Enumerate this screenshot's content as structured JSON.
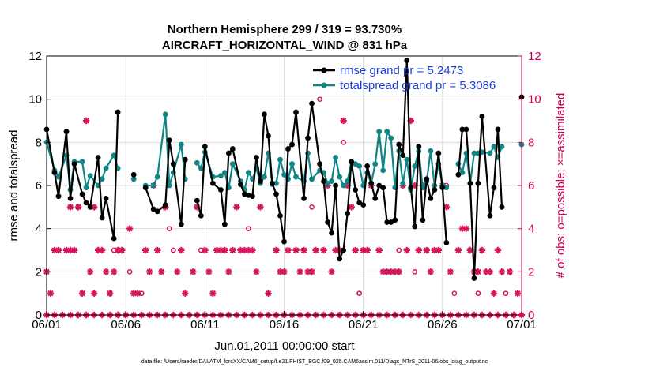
{
  "chart_data": {
    "type": "line",
    "title_line1": "Northern Hemisphere 299 / 319 = 93.730%",
    "title_line2": "AIRCRAFT_HORIZONTAL_WIND @ 831 hPa",
    "xlabel": "Jun.01,2011 00:00:00 start",
    "ylabel": "rmse and totalspread",
    "ylabel_right": "# of obs: o=possible; ×=assimilated",
    "footnote": "data file: /Users/raeder/DAI/ATM_forcXX/CAM6_setup/f.e21.FHIST_BGC.f09_025.CAM6assim.011/Diags_NTrS_2011-06/obs_diag_output.nc",
    "xlim": [
      0,
      30
    ],
    "ylim": [
      0,
      12
    ],
    "ylim_right": [
      0,
      12
    ],
    "x_ticks": [
      0,
      5,
      10,
      15,
      20,
      25,
      30
    ],
    "x_tick_labels": [
      "06/01",
      "06/06",
      "06/11",
      "06/16",
      "06/21",
      "06/26",
      "07/01"
    ],
    "y_ticks": [
      0,
      2,
      4,
      6,
      8,
      10,
      12
    ],
    "y_tick_labels": [
      "0",
      "2",
      "4",
      "6",
      "8",
      "10",
      "12"
    ],
    "y_right_tick_labels": [
      "0",
      "2",
      "4",
      "6",
      "8",
      "10",
      "12"
    ],
    "colors": {
      "rmse": "#000000",
      "totalspread": "#108585",
      "obs": "#d4175c",
      "legend_text": "#1a3fd6",
      "right_axis": "#cc0055"
    },
    "series": [
      {
        "name": "rmse grand pr = 5.2473",
        "values": [
          [
            0,
            8.6
          ],
          [
            0.5,
            6.6
          ],
          [
            0.75,
            5.5
          ],
          [
            1.25,
            8.5
          ],
          [
            1.5,
            5.4
          ],
          [
            1.75,
            7.0
          ],
          [
            2.25,
            5.6
          ],
          [
            2.5,
            5.2
          ],
          [
            2.75,
            5.0
          ],
          [
            3.25,
            7.3
          ],
          [
            3.5,
            4.5
          ],
          [
            3.75,
            5.4
          ],
          [
            4.25,
            3.55
          ],
          [
            4.5,
            9.4
          ],
          [
            5.5,
            6.5
          ],
          [
            6.25,
            5.9
          ],
          [
            6.75,
            4.9
          ],
          [
            7.0,
            4.8
          ],
          [
            7.5,
            5.1
          ],
          [
            7.75,
            8.1
          ],
          [
            8.0,
            7.0
          ],
          [
            8.5,
            4.2
          ],
          [
            8.75,
            7.2
          ],
          [
            9.5,
            5.3
          ],
          [
            9.75,
            4.6
          ],
          [
            10.0,
            7.8
          ],
          [
            10.5,
            6.1
          ],
          [
            11.0,
            5.8
          ],
          [
            11.25,
            4.2
          ],
          [
            11.5,
            7.5
          ],
          [
            11.75,
            7.7
          ],
          [
            12.25,
            6.05
          ],
          [
            12.5,
            5.6
          ],
          [
            12.75,
            5.55
          ],
          [
            13.0,
            5.5
          ],
          [
            13.25,
            7.3
          ],
          [
            13.5,
            6.2
          ],
          [
            13.75,
            9.3
          ],
          [
            14.0,
            8.3
          ],
          [
            14.25,
            6.1
          ],
          [
            14.5,
            5.6
          ],
          [
            14.75,
            4.6
          ],
          [
            15.0,
            3.4
          ],
          [
            15.25,
            7.7
          ],
          [
            15.5,
            7.9
          ],
          [
            15.75,
            9.4
          ],
          [
            16.25,
            5.4
          ],
          [
            16.5,
            8.2
          ],
          [
            16.75,
            9.8
          ],
          [
            17.25,
            7.0
          ],
          [
            17.5,
            6.2
          ],
          [
            17.75,
            4.3
          ],
          [
            18.0,
            3.8
          ],
          [
            18.25,
            6.0
          ],
          [
            18.5,
            2.6
          ],
          [
            18.75,
            3.0
          ],
          [
            19.0,
            4.7
          ],
          [
            19.25,
            7.1
          ],
          [
            19.5,
            5.8
          ],
          [
            19.75,
            5.2
          ],
          [
            20.0,
            5.1
          ],
          [
            20.25,
            6.9
          ],
          [
            20.5,
            6.1
          ],
          [
            20.75,
            5.4
          ],
          [
            21.0,
            6.0
          ],
          [
            21.25,
            5.9
          ],
          [
            21.5,
            4.3
          ],
          [
            21.75,
            4.3
          ],
          [
            22.0,
            4.4
          ],
          [
            22.25,
            7.9
          ],
          [
            22.5,
            7.4
          ],
          [
            22.75,
            11.8
          ],
          [
            23.0,
            5.9
          ],
          [
            23.25,
            4.1
          ],
          [
            23.5,
            7.8
          ],
          [
            23.75,
            4.4
          ],
          [
            24.0,
            6.3
          ],
          [
            24.25,
            5.4
          ],
          [
            24.5,
            5.8
          ],
          [
            24.75,
            7.5
          ],
          [
            25.0,
            5.9
          ],
          [
            25.25,
            3.35
          ],
          [
            26.0,
            6.5
          ],
          [
            26.25,
            8.6
          ],
          [
            26.5,
            8.6
          ],
          [
            26.75,
            6.1
          ],
          [
            27.0,
            1.7
          ],
          [
            27.25,
            6.1
          ],
          [
            27.5,
            9.2
          ],
          [
            28.0,
            4.6
          ],
          [
            28.25,
            5.9
          ],
          [
            28.5,
            8.6
          ],
          [
            28.75,
            5.0
          ],
          [
            30,
            10.1
          ]
        ]
      },
      {
        "name": "totalspread grand pr = 5.3086",
        "values": [
          [
            0,
            8.0
          ],
          [
            0.5,
            6.7
          ],
          [
            0.75,
            6.4
          ],
          [
            1.25,
            7.4
          ],
          [
            1.5,
            5.8
          ],
          [
            1.75,
            7.1
          ],
          [
            2.25,
            7.1
          ],
          [
            2.5,
            5.9
          ],
          [
            2.75,
            6.45
          ],
          [
            3.25,
            6.0
          ],
          [
            3.5,
            6.3
          ],
          [
            3.75,
            6.8
          ],
          [
            4.25,
            7.4
          ],
          [
            4.5,
            6.8
          ],
          [
            5.5,
            6.3
          ],
          [
            6.25,
            6.0
          ],
          [
            6.75,
            6.0
          ],
          [
            7.0,
            6.4
          ],
          [
            7.5,
            9.3
          ],
          [
            7.75,
            6.0
          ],
          [
            8.0,
            6.6
          ],
          [
            8.5,
            7.9
          ],
          [
            8.75,
            6.3
          ],
          [
            9.5,
            7.05
          ],
          [
            9.75,
            6.8
          ],
          [
            10.0,
            7.55
          ],
          [
            10.5,
            6.4
          ],
          [
            11.0,
            6.45
          ],
          [
            11.25,
            6.6
          ],
          [
            11.5,
            5.9
          ],
          [
            11.75,
            7.0
          ],
          [
            12.25,
            6.2
          ],
          [
            12.5,
            5.8
          ],
          [
            12.75,
            6.6
          ],
          [
            13.0,
            6.3
          ],
          [
            13.25,
            6.8
          ],
          [
            13.5,
            6.1
          ],
          [
            13.75,
            6.4
          ],
          [
            14.0,
            7.5
          ],
          [
            14.25,
            6.05
          ],
          [
            14.5,
            6.1
          ],
          [
            14.75,
            7.2
          ],
          [
            15.0,
            6.5
          ],
          [
            15.25,
            6.3
          ],
          [
            15.5,
            7.0
          ],
          [
            15.75,
            6.4
          ],
          [
            16.25,
            6.2
          ],
          [
            16.5,
            7.5
          ],
          [
            16.75,
            6.3
          ],
          [
            17.25,
            6.7
          ],
          [
            17.5,
            6.6
          ],
          [
            17.75,
            6.1
          ],
          [
            18.0,
            6.2
          ],
          [
            18.25,
            7.3
          ],
          [
            18.5,
            6.4
          ],
          [
            18.75,
            6.0
          ],
          [
            19.0,
            6.2
          ],
          [
            19.25,
            7.1
          ],
          [
            19.5,
            7.0
          ],
          [
            19.75,
            6.9
          ],
          [
            20.0,
            6.0
          ],
          [
            20.25,
            6.6
          ],
          [
            20.5,
            6.1
          ],
          [
            20.75,
            7.0
          ],
          [
            21.0,
            8.5
          ],
          [
            21.25,
            6.7
          ],
          [
            21.5,
            8.5
          ],
          [
            21.75,
            8.2
          ],
          [
            22.0,
            5.9
          ],
          [
            22.25,
            7.6
          ],
          [
            22.5,
            6.1
          ],
          [
            22.75,
            7.2
          ],
          [
            23.0,
            5.8
          ],
          [
            23.25,
            6.9
          ],
          [
            23.5,
            7.6
          ],
          [
            23.75,
            5.9
          ],
          [
            24.0,
            6.2
          ],
          [
            24.25,
            7.6
          ],
          [
            24.5,
            6.0
          ],
          [
            24.75,
            7.0
          ],
          [
            25.0,
            6.0
          ],
          [
            25.25,
            5.9
          ],
          [
            26.0,
            7.0
          ],
          [
            26.25,
            6.6
          ],
          [
            26.5,
            7.5
          ],
          [
            26.75,
            6.1
          ],
          [
            27.0,
            7.5
          ],
          [
            27.25,
            7.5
          ],
          [
            27.5,
            7.55
          ],
          [
            28.0,
            7.5
          ],
          [
            28.25,
            7.8
          ],
          [
            28.5,
            7.3
          ],
          [
            28.75,
            7.8
          ],
          [
            30,
            7.9
          ]
        ]
      }
    ],
    "obs_possible_o": [
      [
        4.25,
        3.0
      ],
      [
        5.25,
        2.0
      ],
      [
        6.0,
        1.0
      ],
      [
        7.75,
        4.0
      ],
      [
        8.0,
        3.0
      ],
      [
        9.75,
        3.0
      ],
      [
        12.75,
        4.0
      ],
      [
        16.75,
        5.0
      ],
      [
        17.25,
        10.0
      ],
      [
        18.75,
        8.0
      ],
      [
        19.75,
        1.0
      ],
      [
        22.25,
        3.0
      ],
      [
        23.25,
        2.0
      ],
      [
        25.75,
        1.0
      ],
      [
        27.25,
        1.0
      ],
      [
        29.0,
        1.0
      ],
      [
        25.25,
        6.0
      ]
    ],
    "obs_assimilated_x": [
      [
        0,
        2.0
      ],
      [
        0.25,
        1.0
      ],
      [
        0.5,
        3.0
      ],
      [
        0.75,
        3.0
      ],
      [
        1.25,
        3.0
      ],
      [
        1.5,
        3.0
      ],
      [
        1.5,
        5.0
      ],
      [
        1.75,
        3.0
      ],
      [
        2.0,
        5.0
      ],
      [
        2.25,
        1.0
      ],
      [
        2.5,
        9.0
      ],
      [
        2.75,
        2.0
      ],
      [
        3.0,
        1.0
      ],
      [
        3.0,
        5.0
      ],
      [
        3.25,
        3.0
      ],
      [
        3.5,
        3.0
      ],
      [
        3.75,
        2.0
      ],
      [
        4.0,
        1.0
      ],
      [
        4.25,
        2.0
      ],
      [
        4.5,
        3.0
      ],
      [
        4.75,
        3.0
      ],
      [
        5.0,
        0
      ],
      [
        5.25,
        4.0
      ],
      [
        5.5,
        1.0
      ],
      [
        5.75,
        1.0
      ],
      [
        6.25,
        3.0
      ],
      [
        6.5,
        2.0
      ],
      [
        6.75,
        6.0
      ],
      [
        7.0,
        3.0
      ],
      [
        7.25,
        2.0
      ],
      [
        7.5,
        5.0
      ],
      [
        8.25,
        2.0
      ],
      [
        8.5,
        3.0
      ],
      [
        8.75,
        1.0
      ],
      [
        9.25,
        2.0
      ],
      [
        9.5,
        5.0
      ],
      [
        10.0,
        3.0
      ],
      [
        10.25,
        2.0
      ],
      [
        10.5,
        1.0
      ],
      [
        10.75,
        3.0
      ],
      [
        11.0,
        3.0
      ],
      [
        11.25,
        3.0
      ],
      [
        11.5,
        2.0
      ],
      [
        11.75,
        3.0
      ],
      [
        12.0,
        5.0
      ],
      [
        12.25,
        3.0
      ],
      [
        12.5,
        3.0
      ],
      [
        12.75,
        3.0
      ],
      [
        13.0,
        3.0
      ],
      [
        13.25,
        2.0
      ],
      [
        13.5,
        5.0
      ],
      [
        14.0,
        1.0
      ],
      [
        14.5,
        3.0
      ],
      [
        14.75,
        2.0
      ],
      [
        15.0,
        2.0
      ],
      [
        15.25,
        3.0
      ],
      [
        15.75,
        3.0
      ],
      [
        16.0,
        2.0
      ],
      [
        16.25,
        3.0
      ],
      [
        16.5,
        2.0
      ],
      [
        16.75,
        2.0
      ],
      [
        17.0,
        3.0
      ],
      [
        17.5,
        3.0
      ],
      [
        17.75,
        6.0
      ],
      [
        18.0,
        2.0
      ],
      [
        18.25,
        3.0
      ],
      [
        18.5,
        3.0
      ],
      [
        18.75,
        9.0
      ],
      [
        19.0,
        6.0
      ],
      [
        19.25,
        5.0
      ],
      [
        19.5,
        3.0
      ],
      [
        20.0,
        3.0
      ],
      [
        20.25,
        3.0
      ],
      [
        20.5,
        6.0
      ],
      [
        21.0,
        3.0
      ],
      [
        21.25,
        2.0
      ],
      [
        21.5,
        2.0
      ],
      [
        21.75,
        2.0
      ],
      [
        22.0,
        2.0
      ],
      [
        22.25,
        2.0
      ],
      [
        22.5,
        6.0
      ],
      [
        22.75,
        3.0
      ],
      [
        23.0,
        9.0
      ],
      [
        23.25,
        6.0
      ],
      [
        23.5,
        3.0
      ],
      [
        23.75,
        6.0
      ],
      [
        24.0,
        3.0
      ],
      [
        24.25,
        2.0
      ],
      [
        24.5,
        3.0
      ],
      [
        24.75,
        3.0
      ],
      [
        25.0,
        6.0
      ],
      [
        25.25,
        5.0
      ],
      [
        25.5,
        2.0
      ],
      [
        26.0,
        3.0
      ],
      [
        26.25,
        4.0
      ],
      [
        26.5,
        4.0
      ],
      [
        26.75,
        3.0
      ],
      [
        27.0,
        2.0
      ],
      [
        27.25,
        2.0
      ],
      [
        27.5,
        3.0
      ],
      [
        27.75,
        2.0
      ],
      [
        28.0,
        2.0
      ],
      [
        28.25,
        1.0
      ],
      [
        28.5,
        3.0
      ],
      [
        28.75,
        2.0
      ],
      [
        29.25,
        2.0
      ],
      [
        29.75,
        1.0
      ]
    ],
    "obs_zero_row_x": [
      0,
      0.5,
      1.0,
      1.5,
      2.0,
      2.5,
      3.0,
      3.5,
      4.0,
      4.5,
      5.0,
      5.5,
      6.0,
      6.5,
      7.0,
      7.5,
      8.0,
      8.5,
      9.0,
      9.5,
      10.0,
      10.5,
      11.0,
      11.5,
      12.0,
      12.5,
      13.0,
      13.5,
      14.0,
      14.5,
      15.0,
      15.5,
      16.0,
      16.5,
      17.0,
      17.5,
      18.0,
      18.5,
      19.0,
      19.5,
      20.0,
      20.5,
      21.0,
      21.5,
      22.0,
      22.5,
      23.0,
      23.5,
      24.0,
      24.5,
      25.0,
      25.5,
      26.0,
      26.5,
      27.0,
      27.5,
      28.0,
      28.5,
      29.0,
      29.5,
      30.0
    ]
  }
}
